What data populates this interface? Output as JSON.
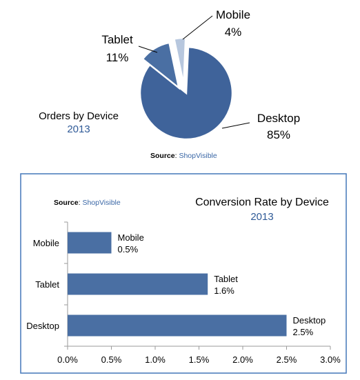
{
  "colors": {
    "primary": "#4a6fa3",
    "primary_dark": "#3f639a",
    "light": "#b7c7de",
    "accent_text": "#2f5a97",
    "source_text": "#3a67a6",
    "frame": "#4e7ebd"
  },
  "top": {
    "title": "Orders by Device",
    "year": "2013",
    "source_label": "Source",
    "source_value": "ShopVisible"
  },
  "bottom": {
    "title": "Conversion Rate by Device",
    "year": "2013",
    "source_label": "Source",
    "source_value": "ShopVisible"
  },
  "chart_data": [
    {
      "type": "pie",
      "title": "Orders by Device",
      "subtitle": "2013",
      "slices": [
        {
          "label": "Desktop",
          "value": 85,
          "display": "85%"
        },
        {
          "label": "Tablet",
          "value": 11,
          "display": "11%"
        },
        {
          "label": "Mobile",
          "value": 4,
          "display": "4%"
        }
      ]
    },
    {
      "type": "bar",
      "orientation": "horizontal",
      "title": "Conversion Rate by Device",
      "subtitle": "2013",
      "categories": [
        "Mobile",
        "Tablet",
        "Desktop"
      ],
      "values": [
        0.5,
        1.6,
        2.5
      ],
      "value_labels": [
        "0.5%",
        "1.6%",
        "2.5%"
      ],
      "xlim": [
        0,
        3.0
      ],
      "xticks": [
        "0.0%",
        "0.5%",
        "1.0%",
        "1.5%",
        "2.0%",
        "2.5%",
        "3.0%"
      ],
      "grid": false
    }
  ]
}
